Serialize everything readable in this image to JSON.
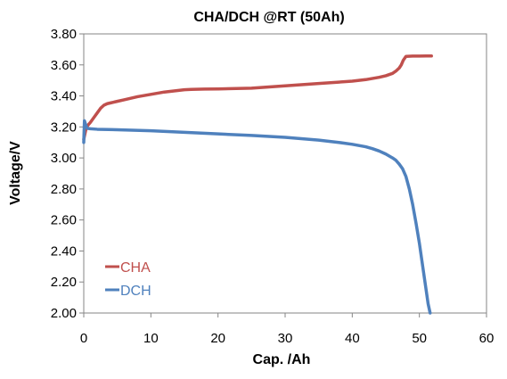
{
  "chart_data": {
    "type": "line",
    "title": "CHA/DCH @RT (50Ah)",
    "xlabel": "Cap. /Ah",
    "ylabel": "Voltage/V",
    "xlim": [
      0,
      60
    ],
    "ylim": [
      2.0,
      3.8
    ],
    "xticks": [
      0,
      10,
      20,
      30,
      40,
      50,
      60
    ],
    "yticks": [
      2.0,
      2.2,
      2.4,
      2.6,
      2.8,
      3.0,
      3.2,
      3.4,
      3.6,
      3.8
    ],
    "xtick_labels": [
      "0",
      "10",
      "20",
      "30",
      "40",
      "50",
      "60"
    ],
    "ytick_labels": [
      "2.00",
      "2.20",
      "2.40",
      "2.60",
      "2.80",
      "3.00",
      "3.20",
      "3.40",
      "3.60",
      "3.80"
    ],
    "grid": false,
    "legend_position": "bottom-left",
    "series": [
      {
        "name": "CHA",
        "color": "#C0504D",
        "x": [
          0,
          0.3,
          0.6,
          1,
          1.5,
          2,
          2.5,
          3,
          3.5,
          4,
          5,
          6,
          8,
          10,
          12,
          14,
          15,
          16,
          18,
          20,
          25,
          30,
          35,
          40,
          42,
          44,
          45,
          46,
          46.5,
          47,
          47.3,
          47.6,
          48,
          49,
          50,
          51,
          51.8
        ],
        "y": [
          3.12,
          3.18,
          3.21,
          3.23,
          3.26,
          3.29,
          3.32,
          3.34,
          3.35,
          3.355,
          3.365,
          3.375,
          3.395,
          3.41,
          3.425,
          3.435,
          3.44,
          3.442,
          3.444,
          3.445,
          3.45,
          3.465,
          3.48,
          3.495,
          3.505,
          3.52,
          3.53,
          3.545,
          3.56,
          3.58,
          3.6,
          3.63,
          3.655,
          3.657,
          3.657,
          3.658,
          3.658
        ]
      },
      {
        "name": "DCH",
        "color": "#4F81BD",
        "x": [
          0,
          0.1,
          0.25,
          0.4,
          0.6,
          1,
          2,
          5,
          10,
          15,
          20,
          25,
          30,
          35,
          38,
          40,
          42,
          43,
          44,
          45,
          46,
          46.5,
          47,
          47.5,
          48,
          48.5,
          49,
          49.5,
          50,
          50.5,
          51,
          51.3,
          51.6
        ],
        "y": [
          3.1,
          3.24,
          3.22,
          3.2,
          3.19,
          3.188,
          3.185,
          3.182,
          3.175,
          3.165,
          3.155,
          3.145,
          3.133,
          3.115,
          3.1,
          3.088,
          3.072,
          3.06,
          3.045,
          3.025,
          3.0,
          2.985,
          2.96,
          2.93,
          2.88,
          2.8,
          2.7,
          2.58,
          2.45,
          2.3,
          2.15,
          2.06,
          2.0
        ]
      }
    ]
  }
}
